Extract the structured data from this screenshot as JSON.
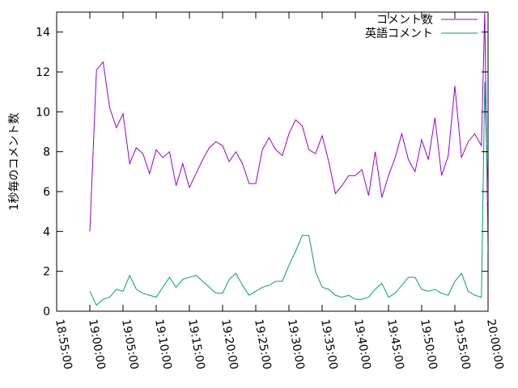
{
  "chart_data": {
    "type": "line",
    "ylabel": "1秒毎のコメント数",
    "x": [
      "19:00:00",
      "19:01:00",
      "19:02:00",
      "19:03:00",
      "19:04:00",
      "19:05:00",
      "19:06:00",
      "19:07:00",
      "19:08:00",
      "19:09:00",
      "19:10:00",
      "19:11:00",
      "19:12:00",
      "19:13:00",
      "19:14:00",
      "19:15:00",
      "19:16:00",
      "19:17:00",
      "19:18:00",
      "19:19:00",
      "19:20:00",
      "19:21:00",
      "19:22:00",
      "19:23:00",
      "19:24:00",
      "19:25:00",
      "19:26:00",
      "19:27:00",
      "19:28:00",
      "19:29:00",
      "19:30:00",
      "19:31:00",
      "19:32:00",
      "19:33:00",
      "19:34:00",
      "19:35:00",
      "19:36:00",
      "19:37:00",
      "19:38:00",
      "19:39:00",
      "19:40:00",
      "19:41:00",
      "19:42:00",
      "19:43:00",
      "19:44:00",
      "19:45:00",
      "19:46:00",
      "19:47:00",
      "19:48:00",
      "19:49:00",
      "19:50:00",
      "19:51:00",
      "19:52:00",
      "19:53:00",
      "19:54:00",
      "19:55:00",
      "19:56:00",
      "19:57:00",
      "19:58:00",
      "19:59:00",
      "19:59:30",
      "20:00:00"
    ],
    "series": [
      {
        "name": "コメント数",
        "color": "#9400d3",
        "values": [
          4,
          12.1,
          12.5,
          10.2,
          9.2,
          9.9,
          7.4,
          8.2,
          7.9,
          6.9,
          8.1,
          7.7,
          8,
          6.3,
          7.4,
          6.2,
          6.9,
          7.6,
          8.2,
          8.5,
          8.3,
          7.5,
          8,
          7.4,
          6.4,
          6.4,
          8.1,
          8.7,
          8.1,
          7.8,
          8.9,
          9.6,
          9.3,
          8.1,
          7.9,
          8.8,
          7.5,
          5.9,
          6.3,
          6.8,
          6.8,
          7.1,
          5.8,
          8,
          5.7,
          6.8,
          7.7,
          8.9,
          7.6,
          7,
          8.6,
          7.6,
          9.7,
          6.8,
          7.8,
          11.3,
          7.7,
          8.5,
          8.9,
          8.3,
          15,
          3
        ]
      },
      {
        "name": "英語コメント",
        "color": "#009e73",
        "values": [
          1,
          0.3,
          0.6,
          0.7,
          1.1,
          1,
          1.8,
          1.1,
          0.9,
          0.8,
          0.7,
          1.2,
          1.7,
          1.2,
          1.6,
          1.7,
          1.8,
          1.5,
          1.2,
          0.9,
          0.9,
          1.6,
          1.9,
          1.3,
          0.8,
          1,
          1.2,
          1.3,
          1.5,
          1.5,
          2.3,
          3,
          3.8,
          3.8,
          2,
          1.2,
          1.1,
          0.8,
          0.7,
          0.8,
          0.6,
          0.6,
          0.7,
          1.1,
          1.4,
          0.7,
          0.9,
          1.3,
          1.7,
          1.7,
          1.1,
          1,
          1.1,
          0.9,
          0.8,
          1.5,
          1.9,
          1,
          0.8,
          0.7,
          11.5,
          5.5
        ]
      }
    ],
    "xlim": [
      "18:55:00",
      "20:00:00"
    ],
    "xticks": [
      "18:55:00",
      "19:00:00",
      "19:05:00",
      "19:10:00",
      "19:15:00",
      "19:20:00",
      "19:25:00",
      "19:30:00",
      "19:35:00",
      "19:40:00",
      "19:45:00",
      "19:50:00",
      "19:55:00",
      "20:00:00"
    ],
    "ylim": [
      0,
      15
    ],
    "yticks": [
      0,
      2,
      4,
      6,
      8,
      10,
      12,
      14
    ],
    "legend": "top-right"
  }
}
